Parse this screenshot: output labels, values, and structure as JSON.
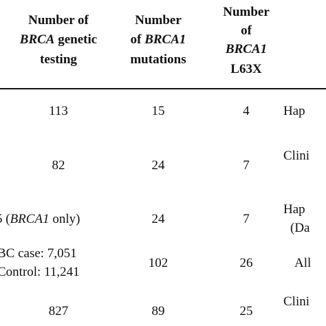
{
  "header": {
    "col1": {
      "line1": "Number of",
      "line2_italic": "BRCA",
      "line2_rest": " genetic",
      "line3": "testing"
    },
    "col2": {
      "line1": "Number",
      "line2_pre": "of ",
      "line2_italic": "BRCA1",
      "line3": "mutations"
    },
    "col3": {
      "line1": "Number",
      "line2": "of",
      "line3_italic": "BRCA1",
      "line4": "L63X"
    }
  },
  "rows": [
    {
      "c1": "113",
      "c2": "15",
      "c3": "4",
      "c4": "Hap"
    },
    {
      "c1": "82",
      "c2": "24",
      "c3": "7",
      "c4": "Clini"
    },
    {
      "c1_pre": "5 (",
      "c1_italic": "BRCA1",
      "c1_post": " only)",
      "c2": "24",
      "c3": "7",
      "c4_line1": "Hap",
      "c4_line2": "(Da"
    },
    {
      "c1_line1": "BC case: 7,051",
      "c1_line2": "Control: 11,241",
      "c2": "102",
      "c3": "26",
      "c4": "All"
    },
    {
      "c1": "827",
      "c2": "89",
      "c3": "25",
      "c4": "Clini"
    }
  ]
}
